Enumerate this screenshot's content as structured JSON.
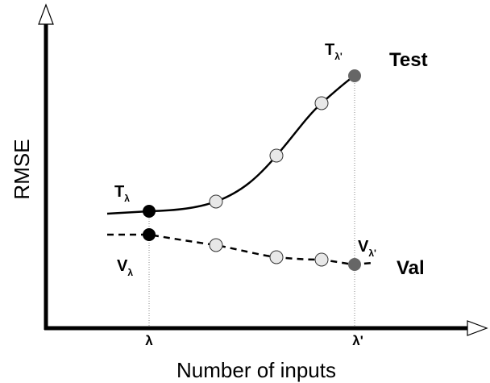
{
  "axes": {
    "y_label": "RMSE",
    "x_label": "Number of inputs",
    "ticks": [
      "λ",
      "λ'"
    ]
  },
  "series": [
    {
      "name": "Test"
    },
    {
      "name": "Val"
    }
  ],
  "points": [
    {
      "main": "T",
      "sub": "λ"
    },
    {
      "main": "T",
      "sub": "λ'"
    },
    {
      "main": "V",
      "sub": "λ"
    },
    {
      "main": "V",
      "sub": "λ'"
    }
  ]
}
